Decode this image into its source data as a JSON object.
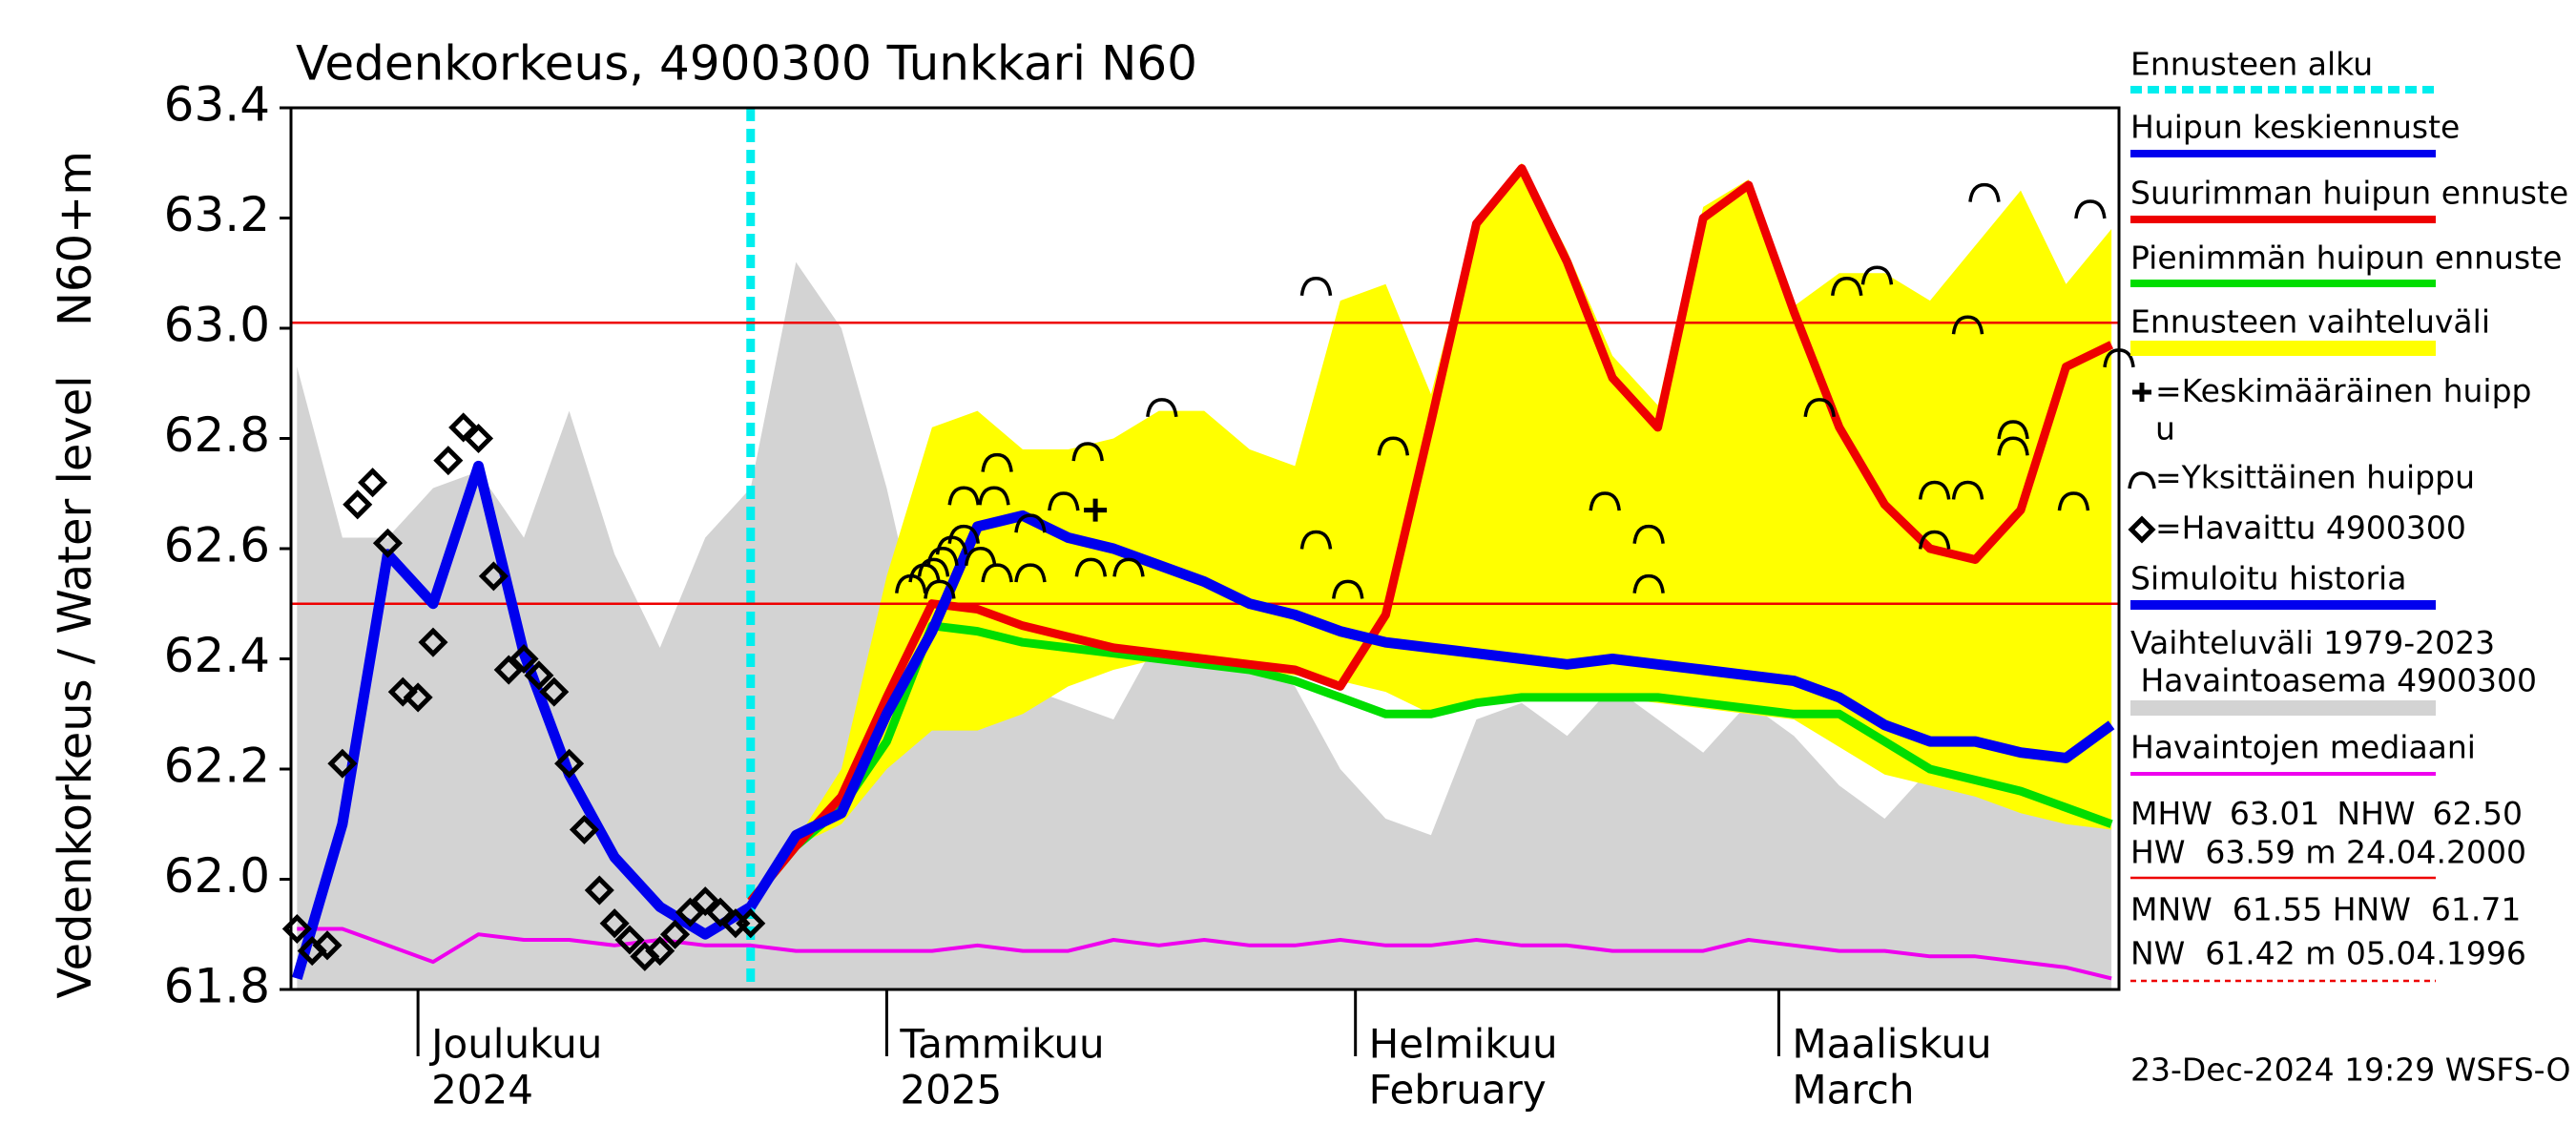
{
  "chart_data": {
    "type": "line",
    "title": "Vedenkorkeus, 4900300 Tunkkari N60",
    "y_label": "Vedenkorkeus / Water level",
    "y_unit": "N60+m",
    "x": [
      0,
      3,
      6,
      9,
      12,
      15,
      18,
      21,
      24,
      27,
      30,
      33,
      36,
      39,
      42,
      45,
      48,
      51,
      54,
      57,
      60,
      63,
      66,
      69,
      72,
      75,
      78,
      81,
      84,
      87,
      90,
      93,
      96,
      99,
      102,
      105,
      108,
      111,
      114,
      117,
      120
    ],
    "xlim": [
      -0.4,
      120.5
    ],
    "xticks": [
      {
        "value": 8,
        "label": "Joulukuu"
      },
      {
        "value": 39,
        "label": "Tammikuu"
      },
      {
        "value": 70,
        "label": "Helmikuu"
      },
      {
        "value": 98,
        "label": "Maaliskuu"
      }
    ],
    "x_sublabels": [
      "2024",
      "2025",
      "February",
      "March"
    ],
    "ylim": [
      61.8,
      63.4
    ],
    "yticks": [
      61.8,
      {
        "value": 62,
        "label": "62.0"
      },
      62.2,
      62.4,
      62.6,
      62.8,
      {
        "value": 63,
        "label": "63.0"
      },
      63.2,
      63.4
    ],
    "forecast_start": {
      "name": "Ennusteen alku",
      "x": 30,
      "color": "#00eeee"
    },
    "series": [
      {
        "name": "Huipun keskiennuste",
        "style": "line",
        "color": "#0000ee",
        "values": [
          null,
          null,
          null,
          null,
          null,
          null,
          null,
          null,
          null,
          null,
          61.95,
          62.08,
          62.12,
          62.3,
          62.45,
          62.64,
          62.66,
          62.62,
          62.6,
          62.57,
          62.54,
          62.5,
          62.48,
          62.45,
          62.43,
          62.42,
          62.41,
          62.4,
          62.39,
          62.4,
          62.39,
          62.38,
          62.37,
          62.36,
          62.33,
          62.28,
          62.25,
          62.25,
          62.23,
          62.22,
          62.28
        ]
      },
      {
        "name": "Suurimman huipun ennuste",
        "style": "line",
        "color": "#ee0000",
        "values": [
          null,
          null,
          null,
          null,
          null,
          null,
          null,
          null,
          null,
          null,
          61.96,
          62.06,
          62.15,
          62.33,
          62.5,
          62.49,
          62.46,
          62.44,
          62.42,
          62.41,
          62.4,
          62.39,
          62.38,
          62.35,
          62.48,
          62.83,
          63.19,
          63.29,
          63.12,
          62.91,
          62.82,
          63.2,
          63.26,
          63.03,
          62.82,
          62.68,
          62.6,
          62.58,
          62.67,
          62.93,
          62.97
        ]
      },
      {
        "name": "Pienimmän huipun ennuste",
        "style": "line",
        "color": "#00dd00",
        "values": [
          null,
          null,
          null,
          null,
          null,
          null,
          null,
          null,
          null,
          null,
          61.96,
          62.06,
          62.13,
          62.25,
          62.46,
          62.45,
          62.43,
          62.42,
          62.41,
          62.4,
          62.39,
          62.38,
          62.36,
          62.33,
          62.3,
          62.3,
          62.32,
          62.33,
          62.33,
          62.33,
          62.33,
          62.32,
          62.31,
          62.3,
          62.3,
          62.25,
          62.2,
          62.18,
          62.16,
          62.13,
          62.1
        ]
      },
      {
        "name": "Ennusteen vaihteluväli",
        "style": "area",
        "color": "#ffff00",
        "values": [
          null,
          null,
          null,
          null,
          null,
          null,
          null,
          null,
          null,
          null,
          61.96,
          62.07,
          62.2,
          62.55,
          62.82,
          62.85,
          62.78,
          62.78,
          62.8,
          62.85,
          62.85,
          62.78,
          62.75,
          63.05,
          63.08,
          62.88,
          63.2,
          63.3,
          63.14,
          62.95,
          62.86,
          63.22,
          63.27,
          63.04,
          63.1,
          63.1,
          63.05,
          63.15,
          63.25,
          63.08,
          63.18
        ],
        "lower": [
          null,
          null,
          null,
          null,
          null,
          null,
          null,
          null,
          null,
          null,
          61.96,
          62.06,
          62.1,
          62.2,
          62.27,
          62.27,
          62.3,
          62.35,
          62.38,
          62.4,
          62.4,
          62.38,
          62.37,
          62.36,
          62.34,
          62.3,
          62.32,
          62.33,
          62.33,
          62.33,
          62.32,
          62.31,
          62.3,
          62.29,
          62.24,
          62.19,
          62.17,
          62.15,
          62.12,
          62.1,
          62.09
        ]
      },
      {
        "name": "=Keskimääräinen huipp\nu",
        "style": "plus",
        "color": "#000000",
        "x": [
          52.8
        ],
        "values": [
          62.67
        ]
      },
      {
        "name": "=Yksittäinen huippu",
        "style": "arc",
        "color": "#000000",
        "x": [
          40.6,
          41.5,
          42.1,
          42.7,
          43.3,
          44.1,
          42.5,
          44.1,
          45.2,
          46.3,
          46.1,
          46.3,
          48.5,
          48.5,
          50.7,
          52.3,
          52.5,
          55.0,
          57.2,
          67.4,
          67.4,
          69.5,
          72.5,
          86.5,
          89.4,
          89.4,
          100.7,
          102.5,
          104.5,
          108.3,
          108.3,
          110.5,
          110.5,
          113.5,
          113.5,
          111.6,
          117.5,
          118.6,
          120.5
        ],
        "values": [
          62.54,
          62.56,
          62.57,
          62.59,
          62.61,
          62.63,
          62.53,
          62.7,
          62.59,
          62.56,
          62.7,
          62.76,
          62.65,
          62.56,
          62.69,
          62.78,
          62.57,
          62.57,
          62.86,
          63.08,
          62.62,
          62.53,
          62.79,
          62.69,
          62.63,
          62.54,
          62.86,
          63.08,
          63.1,
          62.71,
          62.62,
          63.01,
          62.71,
          62.82,
          62.79,
          63.25,
          62.69,
          63.22,
          62.95
        ]
      },
      {
        "name": "=Havaittu 4900300",
        "style": "diamond",
        "color": "#000000",
        "x": [
          0,
          1,
          2,
          3,
          4,
          5,
          6,
          7,
          8,
          9,
          10,
          11,
          12,
          13,
          14,
          15,
          16,
          17,
          18,
          19,
          20,
          21,
          22,
          23,
          24,
          25,
          26,
          27,
          28,
          29,
          30
        ],
        "values": [
          61.91,
          61.87,
          61.88,
          62.21,
          62.68,
          62.72,
          62.61,
          62.34,
          62.33,
          62.43,
          62.76,
          62.82,
          62.8,
          62.55,
          62.38,
          62.4,
          62.37,
          62.34,
          62.21,
          62.09,
          61.98,
          61.92,
          61.89,
          61.86,
          61.87,
          61.9,
          61.94,
          61.96,
          61.94,
          61.92,
          61.92
        ]
      },
      {
        "name": "Simuloitu historia",
        "style": "line",
        "color": "#0000ee",
        "values": [
          61.82,
          62.1,
          62.59,
          62.5,
          62.75,
          62.41,
          62.19,
          62.04,
          61.95,
          61.9,
          61.95,
          null,
          null,
          null,
          null,
          null,
          null,
          null,
          null,
          null,
          null,
          null,
          null,
          null,
          null,
          null,
          null,
          null,
          null,
          null,
          null,
          null,
          null,
          null,
          null,
          null,
          null,
          null,
          null,
          null,
          null
        ]
      },
      {
        "name": "Vaihteluväli 1979-2023\n Havaintoasema 4900300",
        "style": "band",
        "color": "#d3d3d3",
        "values": [
          62.93,
          62.62,
          62.62,
          62.71,
          62.74,
          62.62,
          62.85,
          62.59,
          62.42,
          62.62,
          62.71,
          63.12,
          63.0,
          62.71,
          62.35,
          62.29,
          62.35,
          62.32,
          62.29,
          62.44,
          62.44,
          62.41,
          62.35,
          62.2,
          62.11,
          62.08,
          62.29,
          62.32,
          62.26,
          62.35,
          62.29,
          62.23,
          62.32,
          62.26,
          62.17,
          62.11,
          62.2,
          62.17,
          62.14,
          62.35,
          62.59
        ]
      },
      {
        "name": "Havaintojen mediaani",
        "style": "line",
        "color": "#ee00ee",
        "values": [
          61.91,
          61.91,
          61.88,
          61.85,
          61.9,
          61.89,
          61.89,
          61.88,
          61.89,
          61.88,
          61.88,
          61.87,
          61.87,
          61.87,
          61.87,
          61.88,
          61.87,
          61.87,
          61.89,
          61.88,
          61.89,
          61.88,
          61.88,
          61.89,
          61.88,
          61.88,
          61.89,
          61.88,
          61.88,
          61.87,
          61.87,
          61.87,
          61.89,
          61.88,
          61.87,
          61.87,
          61.86,
          61.86,
          61.85,
          61.84,
          61.82
        ]
      }
    ],
    "reference_lines": [
      {
        "name": "MHW",
        "value": 63.01,
        "label": "63.01"
      },
      {
        "name": "NHW",
        "value": 62.5,
        "label": "62.50"
      }
    ],
    "stats": [
      "HW  63.59 m 24.04.2000",
      "MNW  61.55 HNW  61.71",
      "NW  61.42 m 05.04.1996"
    ],
    "footer": "23-Dec-2024 19:29 WSFS-O"
  }
}
